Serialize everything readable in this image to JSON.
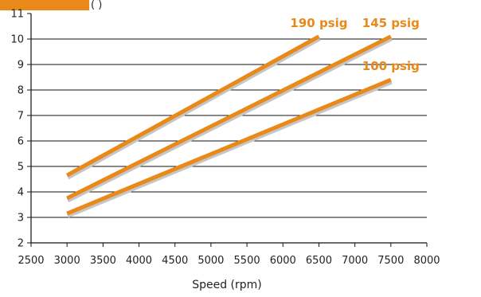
{
  "chart_data": {
    "type": "line",
    "xlabel": "Speed (rpm)",
    "ylabel_fragment": "(    )",
    "xlim": [
      2500,
      8000
    ],
    "ylim": [
      2,
      11
    ],
    "x_ticks": [
      2500,
      3000,
      3500,
      4000,
      4500,
      5000,
      5500,
      6000,
      6500,
      7000,
      7500,
      8000
    ],
    "y_ticks": [
      2,
      3,
      4,
      5,
      6,
      7,
      8,
      9,
      10,
      11
    ],
    "grid": true,
    "series": [
      {
        "name": "190 psig",
        "x": [
          3000,
          6500
        ],
        "y": [
          4.65,
          10.1
        ]
      },
      {
        "name": "145 psig",
        "x": [
          3000,
          7500
        ],
        "y": [
          3.75,
          10.1
        ]
      },
      {
        "name": "100 psig",
        "x": [
          3000,
          7500
        ],
        "y": [
          3.15,
          8.4
        ]
      }
    ],
    "colors": {
      "line": "#e8891a",
      "shadow": "#c6c6c6",
      "label": "#e8891a",
      "grid": "#111111",
      "axis": "#111111",
      "header_bar": "#e8891a"
    }
  }
}
